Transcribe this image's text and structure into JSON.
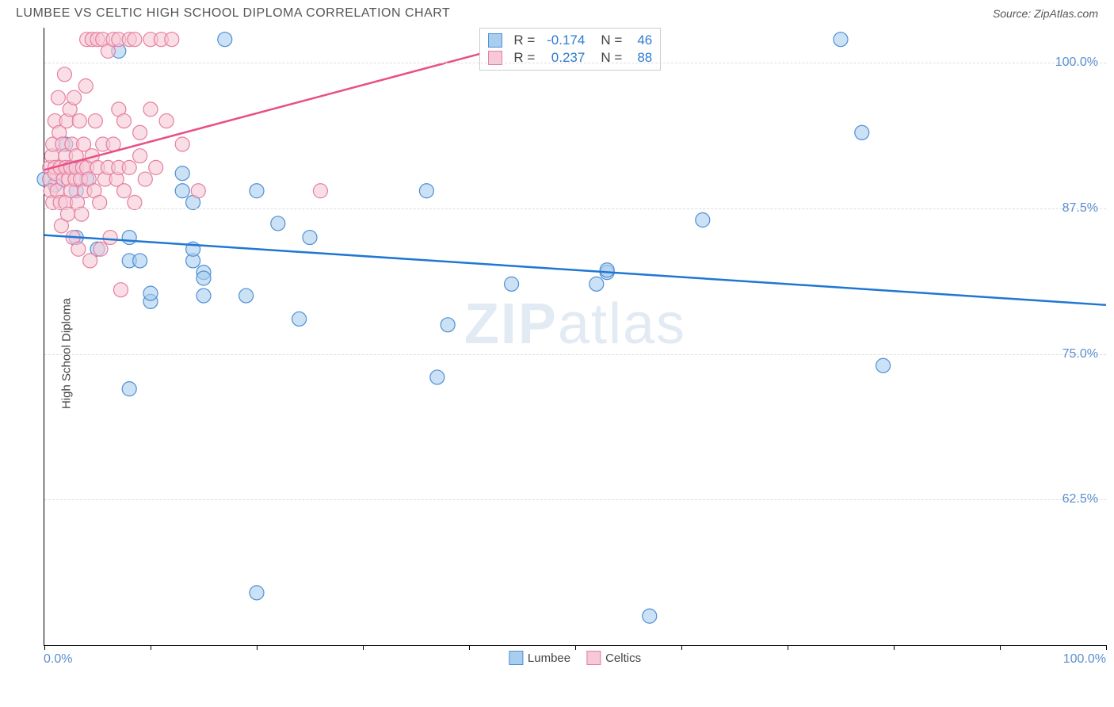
{
  "header": {
    "title": "LUMBEE VS CELTIC HIGH SCHOOL DIPLOMA CORRELATION CHART",
    "source": "Source: ZipAtlas.com"
  },
  "chart": {
    "type": "scatter",
    "ylabel": "High School Diploma",
    "xmin": 0,
    "xmax": 100,
    "ymin": 50,
    "ymax": 103,
    "xtick_positions": [
      0,
      10,
      20,
      30,
      40,
      50,
      60,
      70,
      80,
      90,
      100
    ],
    "ygrid": [
      {
        "value": 62.5,
        "label": "62.5%"
      },
      {
        "value": 75.0,
        "label": "75.0%"
      },
      {
        "value": 87.5,
        "label": "87.5%"
      },
      {
        "value": 100.0,
        "label": "100.0%"
      }
    ],
    "x_start_label": "0.0%",
    "x_end_label": "100.0%",
    "background_color": "#ffffff",
    "grid_color": "#dddddd",
    "axis_color": "#000000",
    "watermark": "ZIPatlas",
    "series": [
      {
        "name": "Lumbee",
        "color_fill": "#a9cdee",
        "color_stroke": "#4f8fd3",
        "line_color": "#1f77d4",
        "marker_radius": 9,
        "trend": {
          "x1": 0,
          "y1": 85.2,
          "x2": 100,
          "y2": 79.2
        },
        "R": "-0.174",
        "N": "46",
        "points": [
          [
            0,
            90
          ],
          [
            1,
            89.5
          ],
          [
            2,
            93
          ],
          [
            2.5,
            91
          ],
          [
            3,
            89
          ],
          [
            3,
            85
          ],
          [
            4,
            90
          ],
          [
            5,
            84
          ],
          [
            7,
            101
          ],
          [
            8,
            72
          ],
          [
            8,
            85
          ],
          [
            8,
            83
          ],
          [
            9,
            83
          ],
          [
            10,
            79.5
          ],
          [
            10,
            80.2
          ],
          [
            13,
            90.5
          ],
          [
            13,
            89
          ],
          [
            14,
            88
          ],
          [
            14,
            83
          ],
          [
            14,
            84
          ],
          [
            15,
            82
          ],
          [
            15,
            81.5
          ],
          [
            15,
            80
          ],
          [
            17,
            102
          ],
          [
            19,
            80
          ],
          [
            20,
            89
          ],
          [
            20,
            54.5
          ],
          [
            22,
            86.2
          ],
          [
            24,
            78
          ],
          [
            25,
            85
          ],
          [
            36,
            89
          ],
          [
            37,
            73
          ],
          [
            38,
            77.5
          ],
          [
            44,
            81
          ],
          [
            52,
            81
          ],
          [
            53,
            82
          ],
          [
            53,
            82.2
          ],
          [
            57,
            52.5
          ],
          [
            62,
            86.5
          ],
          [
            75,
            102
          ],
          [
            77,
            94
          ],
          [
            79,
            74
          ]
        ]
      },
      {
        "name": "Celtics",
        "color_fill": "#f7c8d6",
        "color_stroke": "#e67ea0",
        "line_color": "#e84f86",
        "marker_radius": 9,
        "trend": {
          "x1": 0,
          "y1": 90.8,
          "x2": 42,
          "y2": 101
        },
        "R": "0.237",
        "N": "88",
        "points": [
          [
            0.5,
            91
          ],
          [
            0.5,
            90
          ],
          [
            0.6,
            89
          ],
          [
            0.7,
            92
          ],
          [
            0.8,
            88
          ],
          [
            0.8,
            93
          ],
          [
            1,
            95
          ],
          [
            1,
            91
          ],
          [
            1,
            90.5
          ],
          [
            1.2,
            89
          ],
          [
            1.3,
            97
          ],
          [
            1.4,
            94
          ],
          [
            1.5,
            88
          ],
          [
            1.5,
            91
          ],
          [
            1.6,
            86
          ],
          [
            1.7,
            93
          ],
          [
            1.8,
            90
          ],
          [
            1.9,
            99
          ],
          [
            2,
            92
          ],
          [
            2,
            91
          ],
          [
            2,
            88
          ],
          [
            2.1,
            95
          ],
          [
            2.2,
            87
          ],
          [
            2.3,
            90
          ],
          [
            2.4,
            96
          ],
          [
            2.5,
            91
          ],
          [
            2.5,
            89
          ],
          [
            2.6,
            93
          ],
          [
            2.7,
            85
          ],
          [
            2.8,
            97
          ],
          [
            2.9,
            90
          ],
          [
            3,
            91
          ],
          [
            3,
            92
          ],
          [
            3.1,
            88
          ],
          [
            3.2,
            84
          ],
          [
            3.3,
            95
          ],
          [
            3.4,
            90
          ],
          [
            3.5,
            87
          ],
          [
            3.6,
            91
          ],
          [
            3.7,
            93
          ],
          [
            3.8,
            89
          ],
          [
            3.9,
            98
          ],
          [
            4,
            91
          ],
          [
            4,
            102
          ],
          [
            4.2,
            90
          ],
          [
            4.3,
            83
          ],
          [
            4.5,
            102
          ],
          [
            4.5,
            92
          ],
          [
            4.7,
            89
          ],
          [
            4.8,
            95
          ],
          [
            5,
            91
          ],
          [
            5,
            102
          ],
          [
            5.2,
            88
          ],
          [
            5.3,
            84
          ],
          [
            5.5,
            102
          ],
          [
            5.5,
            93
          ],
          [
            5.7,
            90
          ],
          [
            6,
            91
          ],
          [
            6,
            101
          ],
          [
            6.2,
            85
          ],
          [
            6.5,
            102
          ],
          [
            6.5,
            93
          ],
          [
            6.8,
            90
          ],
          [
            7,
            96
          ],
          [
            7,
            91
          ],
          [
            7,
            102
          ],
          [
            7.2,
            80.5
          ],
          [
            7.5,
            89
          ],
          [
            7.5,
            95
          ],
          [
            8,
            102
          ],
          [
            8,
            91
          ],
          [
            8.5,
            88
          ],
          [
            8.5,
            102
          ],
          [
            9,
            94
          ],
          [
            9,
            92
          ],
          [
            9.5,
            90
          ],
          [
            10,
            96
          ],
          [
            10,
            102
          ],
          [
            10.5,
            91
          ],
          [
            11,
            102
          ],
          [
            11.5,
            95
          ],
          [
            12,
            102
          ],
          [
            13,
            93
          ],
          [
            14.5,
            89
          ],
          [
            26,
            89
          ]
        ]
      }
    ],
    "bottom_legend": [
      {
        "label": "Lumbee",
        "fill": "#a9cdee",
        "stroke": "#4f8fd3"
      },
      {
        "label": "Celtics",
        "fill": "#f7c8d6",
        "stroke": "#e67ea0"
      }
    ],
    "ytick_color": "#5b8ecf",
    "label_fontsize": 15
  }
}
